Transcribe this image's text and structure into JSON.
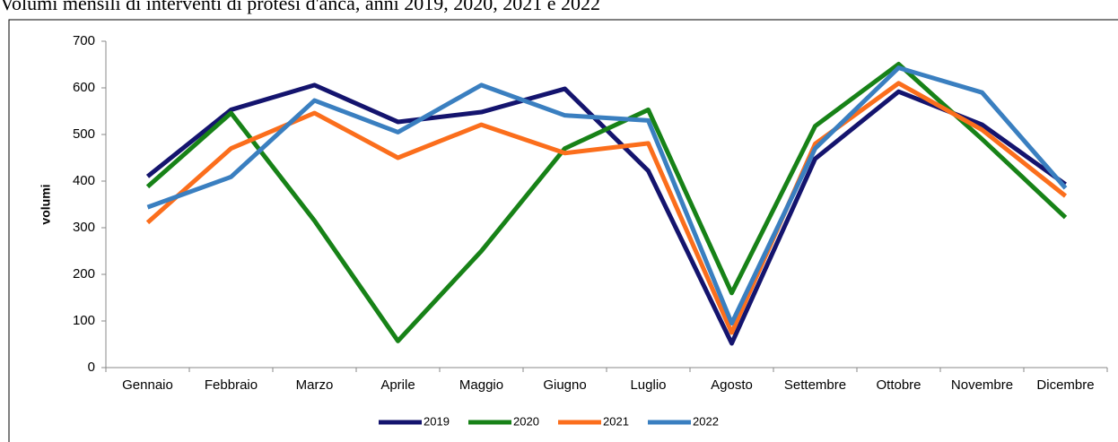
{
  "chart_data": {
    "type": "line",
    "title": "Volumi mensili di interventi di protesi d'anca, anni 2019, 2020, 2021 e 2022",
    "y_label": "volumi",
    "categories": [
      "Gennaio",
      "Febbraio",
      "Marzo",
      "Aprile",
      "Maggio",
      "Giugno",
      "Luglio",
      "Agosto",
      "Settembre",
      "Ottobre",
      "Novembre",
      "Dicembre"
    ],
    "series": [
      {
        "name": "2019",
        "color": "#14146e",
        "values": [
          410,
          553,
          606,
          527,
          548,
          598,
          422,
          52,
          448,
          592,
          521,
          393
        ]
      },
      {
        "name": "2020",
        "color": "#178217",
        "values": [
          388,
          546,
          315,
          57,
          250,
          470,
          553,
          160,
          518,
          651,
          490,
          322
        ]
      },
      {
        "name": "2021",
        "color": "#fb6e1c",
        "values": [
          311,
          470,
          546,
          450,
          521,
          460,
          481,
          75,
          480,
          610,
          510,
          368
        ]
      },
      {
        "name": "2022",
        "color": "#3a7fc0",
        "values": [
          344,
          409,
          573,
          505,
          606,
          541,
          530,
          95,
          470,
          643,
          590,
          385
        ]
      }
    ],
    "ylim": [
      0,
      700
    ],
    "yticks": [
      0,
      100,
      200,
      300,
      400,
      500,
      600,
      700
    ],
    "legend": "bottom"
  }
}
